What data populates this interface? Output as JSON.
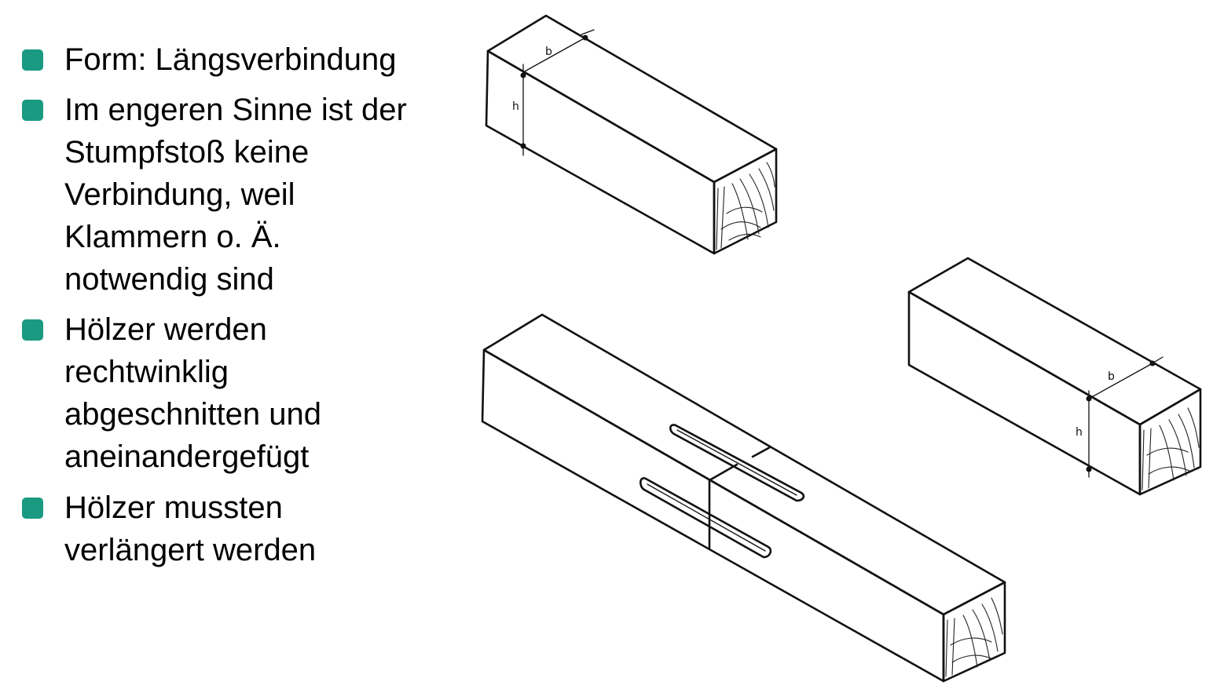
{
  "bullets": [
    {
      "lines": [
        "Form: Längsverbindung"
      ]
    },
    {
      "lines": [
        "Im engeren Sinne ist der",
        "Stumpfstoß keine",
        "Verbindung, weil",
        "Klammern o. Ä.",
        "notwendig sind"
      ]
    },
    {
      "lines": [
        "Hölzer werden",
        "rechtwinklig",
        "abgeschnitten und",
        "aneinandergefügt"
      ]
    },
    {
      "lines": [
        "Hölzer mussten",
        "verlängert werden"
      ]
    }
  ],
  "bullet_color": "#1a9a80",
  "drawing": {
    "dim_b": "b",
    "dim_h": "h"
  }
}
